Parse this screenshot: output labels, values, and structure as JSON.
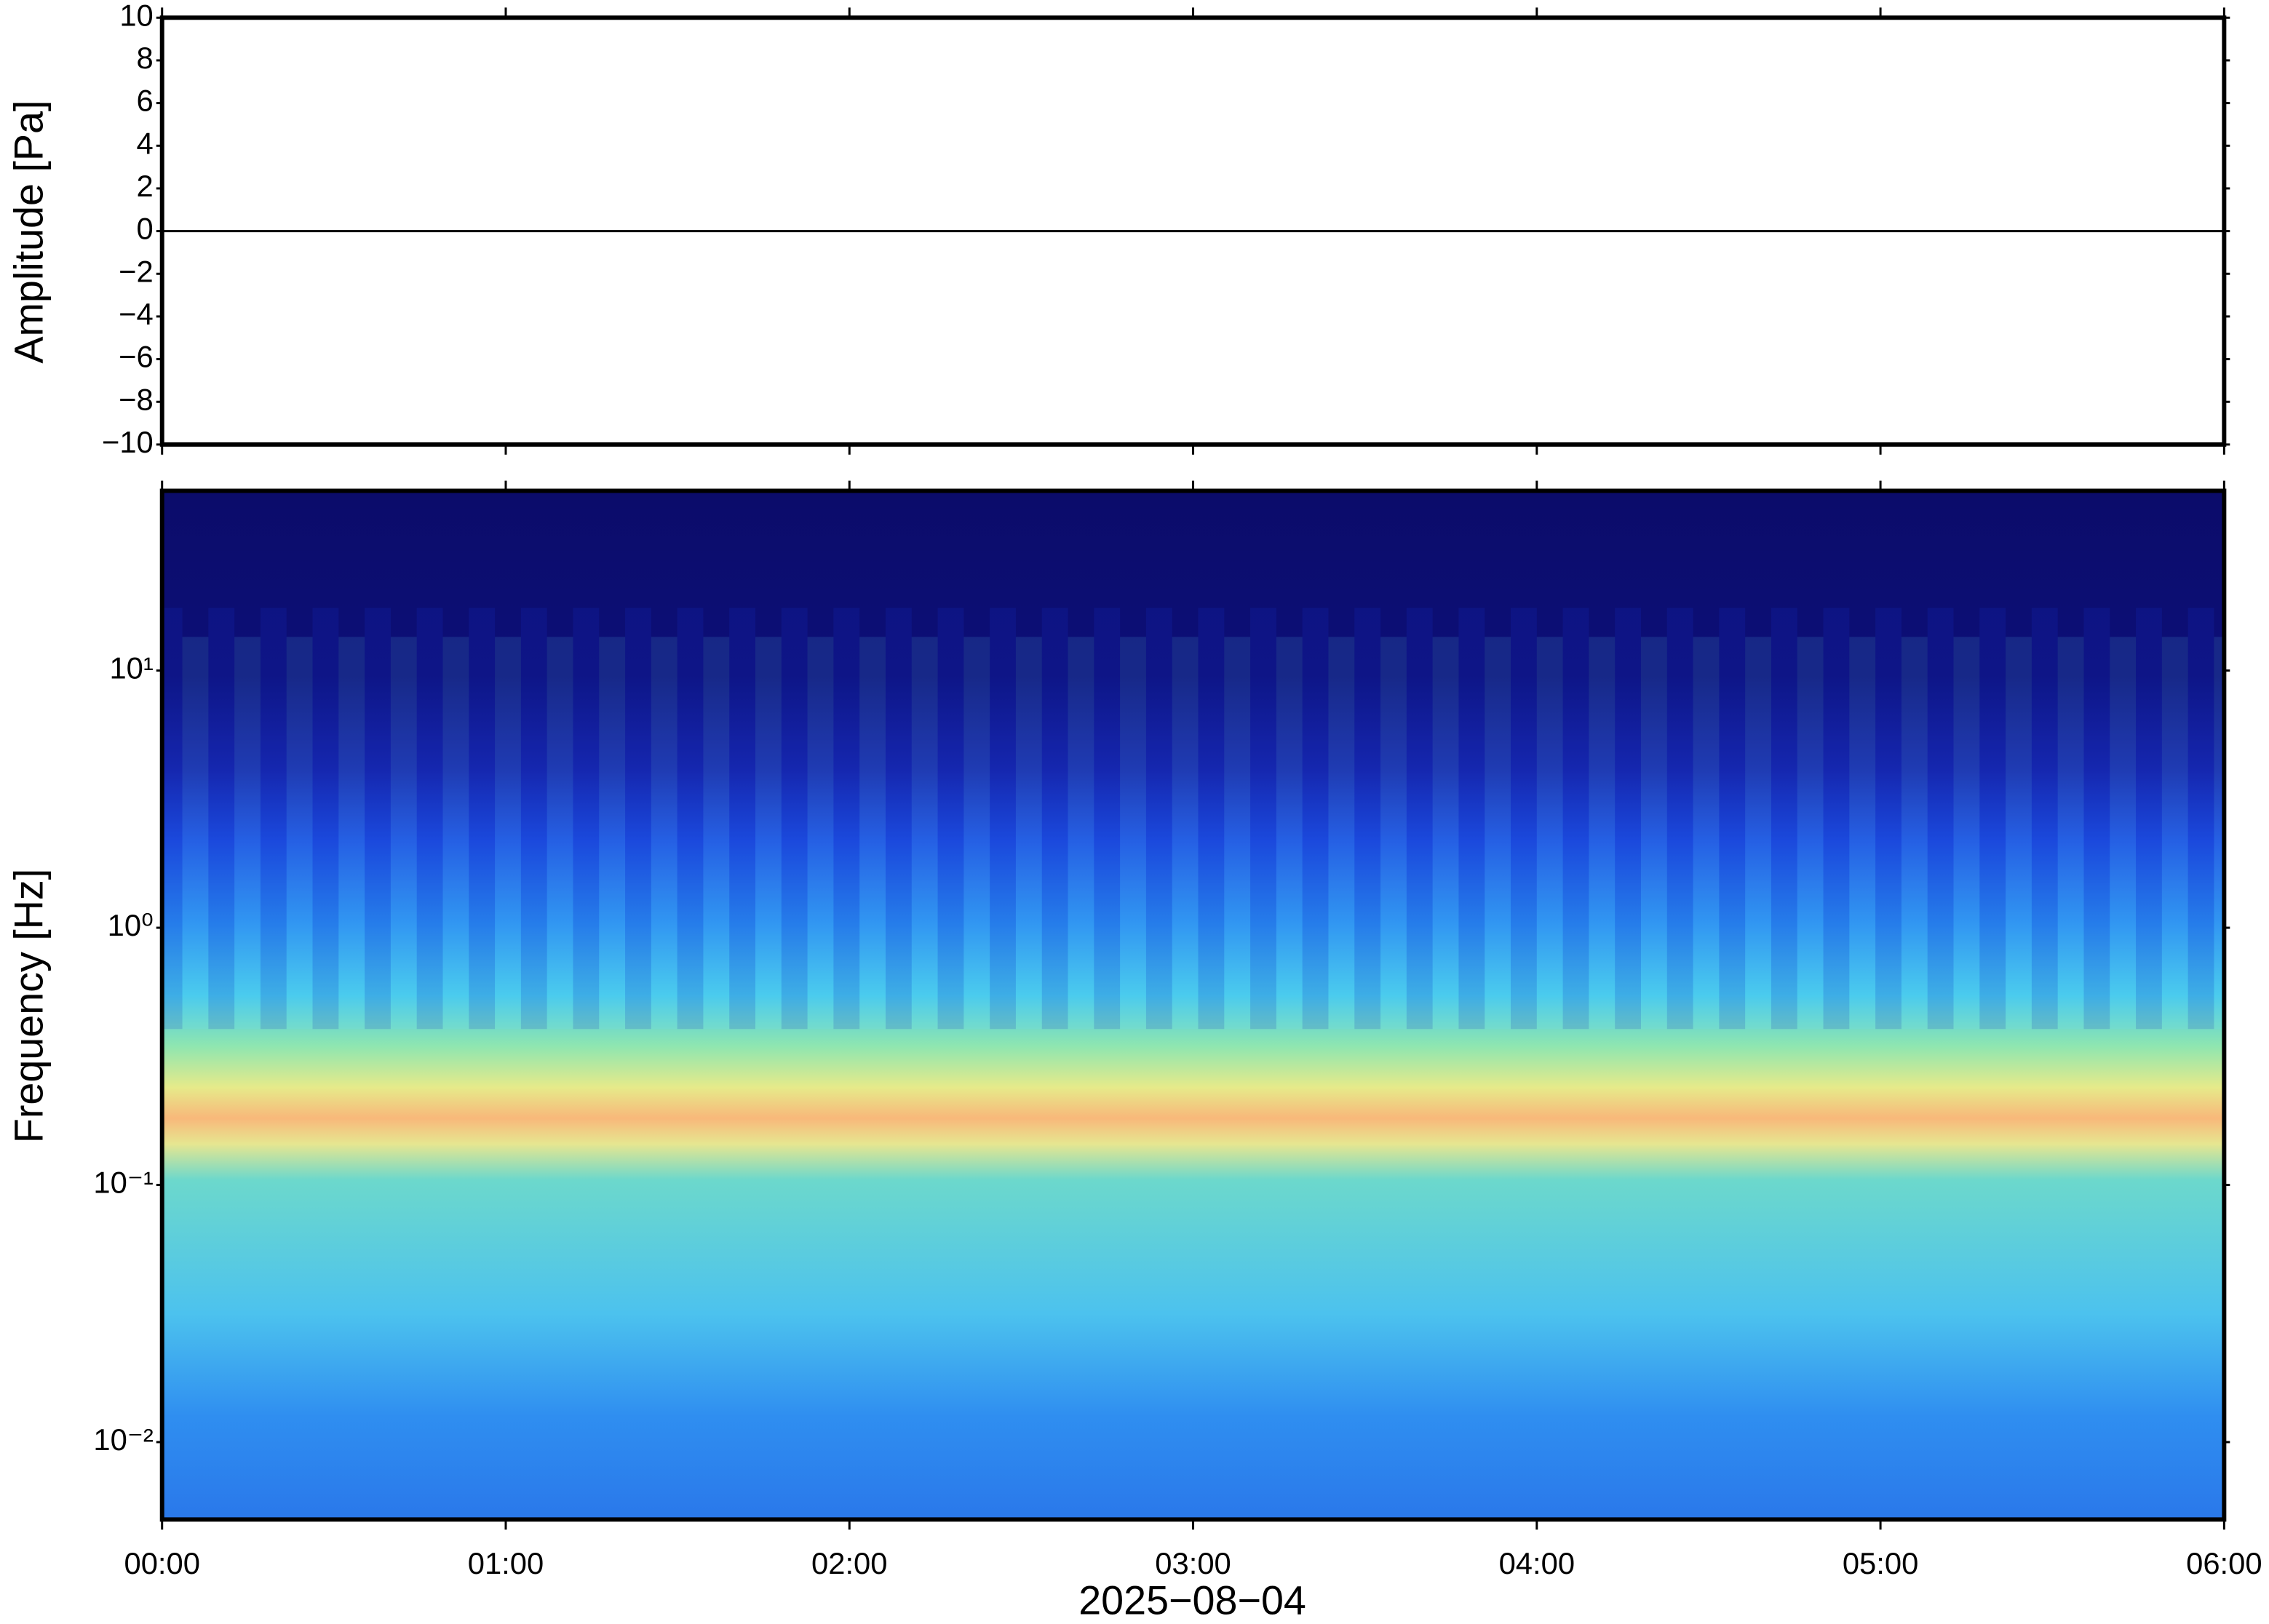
{
  "chart_data": [
    {
      "type": "line",
      "ylabel": "Amplitude [Pa]",
      "x": [
        0,
        0.5,
        1,
        1.5,
        2,
        2.5,
        3,
        3.5,
        4,
        4.5,
        5,
        5.5,
        6
      ],
      "series": [
        {
          "color": "#000000",
          "values": [
            0,
            0,
            0,
            0,
            0,
            0,
            0,
            0,
            0,
            0,
            0,
            0,
            0
          ]
        }
      ],
      "xlim": [
        0,
        6
      ],
      "ylim": [
        -10,
        10
      ],
      "yticks": [
        {
          "value": -10,
          "label": "−10"
        },
        {
          "value": -8,
          "label": "−8"
        },
        {
          "value": -6,
          "label": "−6"
        },
        {
          "value": -4,
          "label": "−4"
        },
        {
          "value": -2,
          "label": "−2"
        },
        0,
        2,
        4,
        6,
        8,
        10
      ]
    },
    {
      "type": "spectrogram",
      "ylabel": "Frequency [Hz]",
      "xlabel": "2025−08−04",
      "xlim": [
        0,
        6
      ],
      "xticks": [
        {
          "value": 0,
          "label": "00:00"
        },
        {
          "value": 1,
          "label": "01:00"
        },
        {
          "value": 2,
          "label": "02:00"
        },
        {
          "value": 3,
          "label": "03:00"
        },
        {
          "value": 4,
          "label": "04:00"
        },
        {
          "value": 5,
          "label": "05:00"
        },
        {
          "value": 6,
          "label": "06:00"
        }
      ],
      "ylim": [
        0.005,
        50
      ],
      "yscale": "log",
      "yticks": [
        {
          "value": 0.01,
          "label": "10⁻²"
        },
        {
          "value": 0.1,
          "label": "10⁻¹"
        },
        {
          "value": 1,
          "label": "10⁰"
        },
        {
          "value": 10,
          "label": "10¹"
        }
      ]
    }
  ]
}
